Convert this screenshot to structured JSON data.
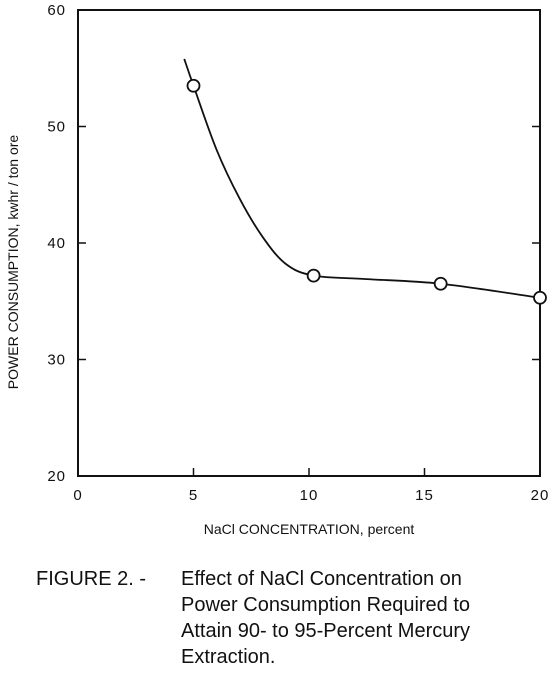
{
  "chart_data": {
    "type": "line",
    "title": "",
    "xlabel": "NaCl CONCENTRATION, percent",
    "ylabel": "POWER CONSUMPTION, kwhr / ton ore",
    "xlim": [
      0,
      20
    ],
    "ylim": [
      20,
      60
    ],
    "xticks": [
      "0",
      "5",
      "10",
      "15",
      "20"
    ],
    "yticks": [
      "20",
      "30",
      "40",
      "50",
      "60"
    ],
    "grid": false,
    "legend": "none",
    "series": [
      {
        "points": [
          {
            "x": 5.0,
            "y": 53.5
          },
          {
            "x": 10.2,
            "y": 37.2
          },
          {
            "x": 15.7,
            "y": 36.5
          },
          {
            "x": 20.0,
            "y": 35.3
          }
        ],
        "curve": [
          {
            "x": 4.6,
            "y": 55.8
          },
          {
            "x": 5.0,
            "y": 53.5
          },
          {
            "x": 6.0,
            "y": 48.0
          },
          {
            "x": 7.0,
            "y": 43.8
          },
          {
            "x": 8.0,
            "y": 40.5
          },
          {
            "x": 9.0,
            "y": 38.2
          },
          {
            "x": 10.2,
            "y": 37.2
          },
          {
            "x": 12.5,
            "y": 36.9
          },
          {
            "x": 15.7,
            "y": 36.5
          },
          {
            "x": 20.0,
            "y": 35.3
          }
        ]
      }
    ]
  },
  "caption": {
    "figure_label": "FIGURE 2. -",
    "lines": [
      "Effect of NaCl Concentration on",
      "Power Consumption Required to",
      "Attain 90- to 95-Percent Mercury",
      "Extraction."
    ]
  }
}
